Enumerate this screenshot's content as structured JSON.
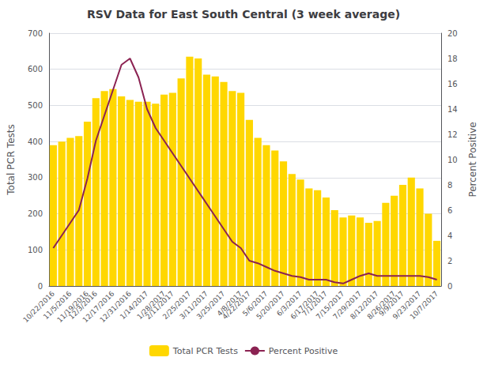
{
  "chart_data": {
    "type": "bar",
    "title": "RSV Data for East South Central (3 week average)",
    "ylabel": "Total PCR Tests",
    "y2label": "Percent Positive",
    "categories": [
      "10/22/2016",
      null,
      "11/5/2016",
      null,
      "11/19/2016",
      "12/3/2016",
      null,
      "12/17/2016",
      null,
      "12/31/2016",
      null,
      "1/14/2017",
      null,
      "1/28/2017",
      "2/11/2017",
      null,
      "2/25/2017",
      null,
      "3/11/2017",
      null,
      "3/25/2017",
      null,
      "4/8/2017",
      "4/22/2017",
      null,
      "5/6/2017",
      null,
      "5/20/2017",
      null,
      "6/3/2017",
      null,
      "6/17/2017",
      "7/1/2017",
      null,
      "7/15/2017",
      null,
      "7/29/2017",
      null,
      "8/12/2017",
      null,
      "8/26/2017",
      "9/9/2017",
      null,
      "9/23/2017",
      null,
      "10/7/2017"
    ],
    "series": [
      {
        "name": "Total PCR Tests",
        "type": "bar",
        "color": "#FFD700",
        "values": [
          390,
          400,
          410,
          415,
          455,
          520,
          540,
          545,
          525,
          515,
          510,
          510,
          505,
          530,
          535,
          575,
          635,
          630,
          585,
          580,
          565,
          540,
          535,
          460,
          410,
          390,
          375,
          345,
          310,
          295,
          270,
          265,
          245,
          210,
          190,
          195,
          190,
          175,
          180,
          230,
          250,
          280,
          300,
          270,
          200,
          125
        ]
      },
      {
        "name": "Percent Positive",
        "type": "line",
        "color": "#8B2252",
        "axis": "y2",
        "values": [
          3.0,
          4.0,
          5.0,
          6.0,
          8.5,
          11.5,
          13.5,
          15.5,
          17.5,
          18.0,
          16.5,
          14.0,
          12.5,
          11.5,
          10.5,
          9.5,
          8.5,
          7.5,
          6.5,
          5.5,
          4.5,
          3.5,
          3.0,
          2.0,
          1.8,
          1.5,
          1.2,
          1.0,
          0.8,
          0.7,
          0.5,
          0.5,
          0.5,
          0.3,
          0.2,
          0.5,
          0.8,
          1.0,
          0.8,
          0.8,
          0.8,
          0.8,
          0.8,
          0.8,
          0.7,
          0.5
        ]
      }
    ],
    "ylim": [
      0,
      700
    ],
    "yticks": [
      0,
      100,
      200,
      300,
      400,
      500,
      600,
      700
    ],
    "y2lim": [
      0,
      20
    ],
    "y2ticks": [
      0,
      2,
      4,
      6,
      8,
      10,
      12,
      14,
      16,
      18,
      20
    ],
    "grid": true,
    "legend": "bottom"
  }
}
